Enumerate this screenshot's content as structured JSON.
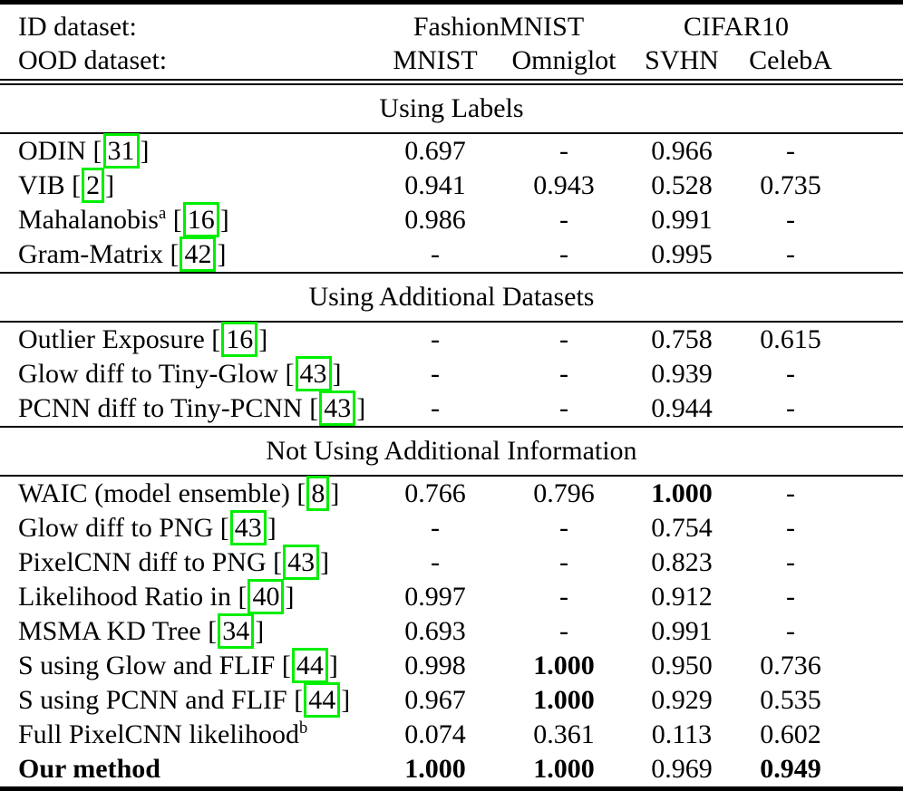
{
  "page": {
    "background": "#ffffff"
  },
  "table": {
    "header": {
      "id_dataset_label": "ID dataset:",
      "ood_dataset_label": "OOD dataset:",
      "id_groups": [
        "FashionMNIST",
        "CIFAR10"
      ],
      "ood_columns": [
        "MNIST",
        "Omniglot",
        "SVHN",
        "CelebA"
      ]
    },
    "colors": {
      "citation_box_border": "#00ee00",
      "text": "#000000",
      "rule": "#000000",
      "background": "#ffffff"
    },
    "missing_value_symbol": "-",
    "sections": [
      {
        "title": "Using Labels",
        "rows": [
          {
            "method": "ODIN",
            "citation": "31",
            "values": [
              "0.697",
              "-",
              "0.966",
              "-"
            ],
            "bold_values": []
          },
          {
            "method": "VIB",
            "citation": "2",
            "values": [
              "0.941",
              "0.943",
              "0.528",
              "0.735"
            ],
            "bold_values": []
          },
          {
            "method": "Mahalanobis",
            "sup": "a",
            "citation": "16",
            "values": [
              "0.986",
              "-",
              "0.991",
              "-"
            ],
            "bold_values": []
          },
          {
            "method": "Gram-Matrix",
            "citation": "42",
            "values": [
              "-",
              "-",
              "0.995",
              "-"
            ],
            "bold_values": []
          }
        ]
      },
      {
        "title": "Using Additional Datasets",
        "rows": [
          {
            "method": "Outlier Exposure",
            "citation": "16",
            "values": [
              "-",
              "-",
              "0.758",
              "0.615"
            ],
            "bold_values": []
          },
          {
            "method": "Glow diff to Tiny-Glow",
            "citation": "43",
            "values": [
              "-",
              "-",
              "0.939",
              "-"
            ],
            "bold_values": []
          },
          {
            "method": "PCNN diff to Tiny-PCNN",
            "citation": "43",
            "values": [
              "-",
              "-",
              "0.944",
              "-"
            ],
            "bold_values": []
          }
        ]
      },
      {
        "title": "Not Using Additional Information",
        "rows": [
          {
            "method": "WAIC (model ensemble)",
            "citation": "8",
            "values": [
              "0.766",
              "0.796",
              "1.000",
              "-"
            ],
            "bold_values": [
              2
            ]
          },
          {
            "method": "Glow diff to PNG",
            "citation": "43",
            "values": [
              "-",
              "-",
              "0.754",
              "-"
            ],
            "bold_values": []
          },
          {
            "method": "PixelCNN diff to PNG",
            "citation": "43",
            "values": [
              "-",
              "-",
              "0.823",
              "-"
            ],
            "bold_values": []
          },
          {
            "method": "Likelihood Ratio in",
            "citation": "40",
            "values": [
              "0.997",
              "-",
              "0.912",
              "-"
            ],
            "bold_values": []
          },
          {
            "method": "MSMA KD Tree",
            "citation": "34",
            "values": [
              "0.693",
              "-",
              "0.991",
              "-"
            ],
            "bold_values": []
          },
          {
            "method": "S using Glow and FLIF",
            "citation": "44",
            "values": [
              "0.998",
              "1.000",
              "0.950",
              "0.736"
            ],
            "bold_values": [
              1
            ]
          },
          {
            "method": "S using PCNN and FLIF",
            "citation": "44",
            "values": [
              "0.967",
              "1.000",
              "0.929",
              "0.535"
            ],
            "bold_values": [
              1
            ]
          },
          {
            "method": "Full PixelCNN likelihood",
            "sup": "b",
            "values": [
              "0.074",
              "0.361",
              "0.113",
              "0.602"
            ],
            "bold_values": []
          },
          {
            "method": "Our method",
            "bold_method": true,
            "values": [
              "1.000",
              "1.000",
              "0.969",
              "0.949"
            ],
            "bold_values": [
              0,
              1,
              3
            ]
          }
        ]
      }
    ]
  }
}
